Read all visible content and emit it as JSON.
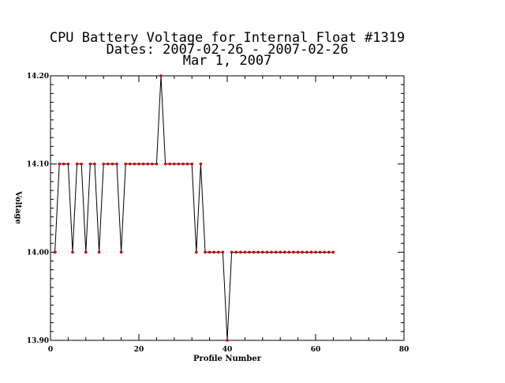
{
  "chart_data": {
    "type": "line",
    "title_lines": [
      "CPU Battery Voltage for Internal Float #1319",
      "Dates:  2007-02-26 -  2007-02-26",
      "Mar  1, 2007"
    ],
    "xlabel": "Profile Number",
    "ylabel": "Voltage",
    "xlim": [
      0,
      80
    ],
    "ylim": [
      13.9,
      14.2
    ],
    "x_ticks": [
      0,
      20,
      40,
      60,
      80
    ],
    "x_tick_labels": [
      "0",
      "20",
      "40",
      "60",
      "80"
    ],
    "y_ticks": [
      13.9,
      14.0,
      14.1,
      14.2
    ],
    "y_tick_labels": [
      "13.90",
      "14.00",
      "14.10",
      "14.20"
    ],
    "grid": false,
    "line_color": "#000000",
    "marker_color": "#cc0000",
    "series": [
      {
        "x": [
          1,
          2,
          3,
          4,
          5,
          6,
          7,
          8,
          9,
          10,
          11,
          12,
          13,
          14,
          15,
          16,
          17,
          18,
          19,
          20,
          21,
          22,
          23,
          24,
          25,
          26,
          27,
          28,
          29,
          30,
          31,
          32,
          33,
          34,
          35,
          36,
          37,
          38,
          39,
          40,
          41,
          42,
          43,
          44,
          45,
          46,
          47,
          48,
          49,
          50,
          51,
          52,
          53,
          54,
          55,
          56,
          57,
          58,
          59,
          60,
          61,
          62,
          63,
          64
        ],
        "y": [
          14.0,
          14.1,
          14.1,
          14.1,
          14.0,
          14.1,
          14.1,
          14.0,
          14.1,
          14.1,
          14.0,
          14.1,
          14.1,
          14.1,
          14.1,
          14.0,
          14.1,
          14.1,
          14.1,
          14.1,
          14.1,
          14.1,
          14.1,
          14.1,
          14.2,
          14.1,
          14.1,
          14.1,
          14.1,
          14.1,
          14.1,
          14.1,
          14.0,
          14.1,
          14.0,
          14.0,
          14.0,
          14.0,
          14.0,
          13.9,
          14.0,
          14.0,
          14.0,
          14.0,
          14.0,
          14.0,
          14.0,
          14.0,
          14.0,
          14.0,
          14.0,
          14.0,
          14.0,
          14.0,
          14.0,
          14.0,
          14.0,
          14.0,
          14.0,
          14.0,
          14.0,
          14.0,
          14.0,
          14.0
        ]
      }
    ]
  }
}
